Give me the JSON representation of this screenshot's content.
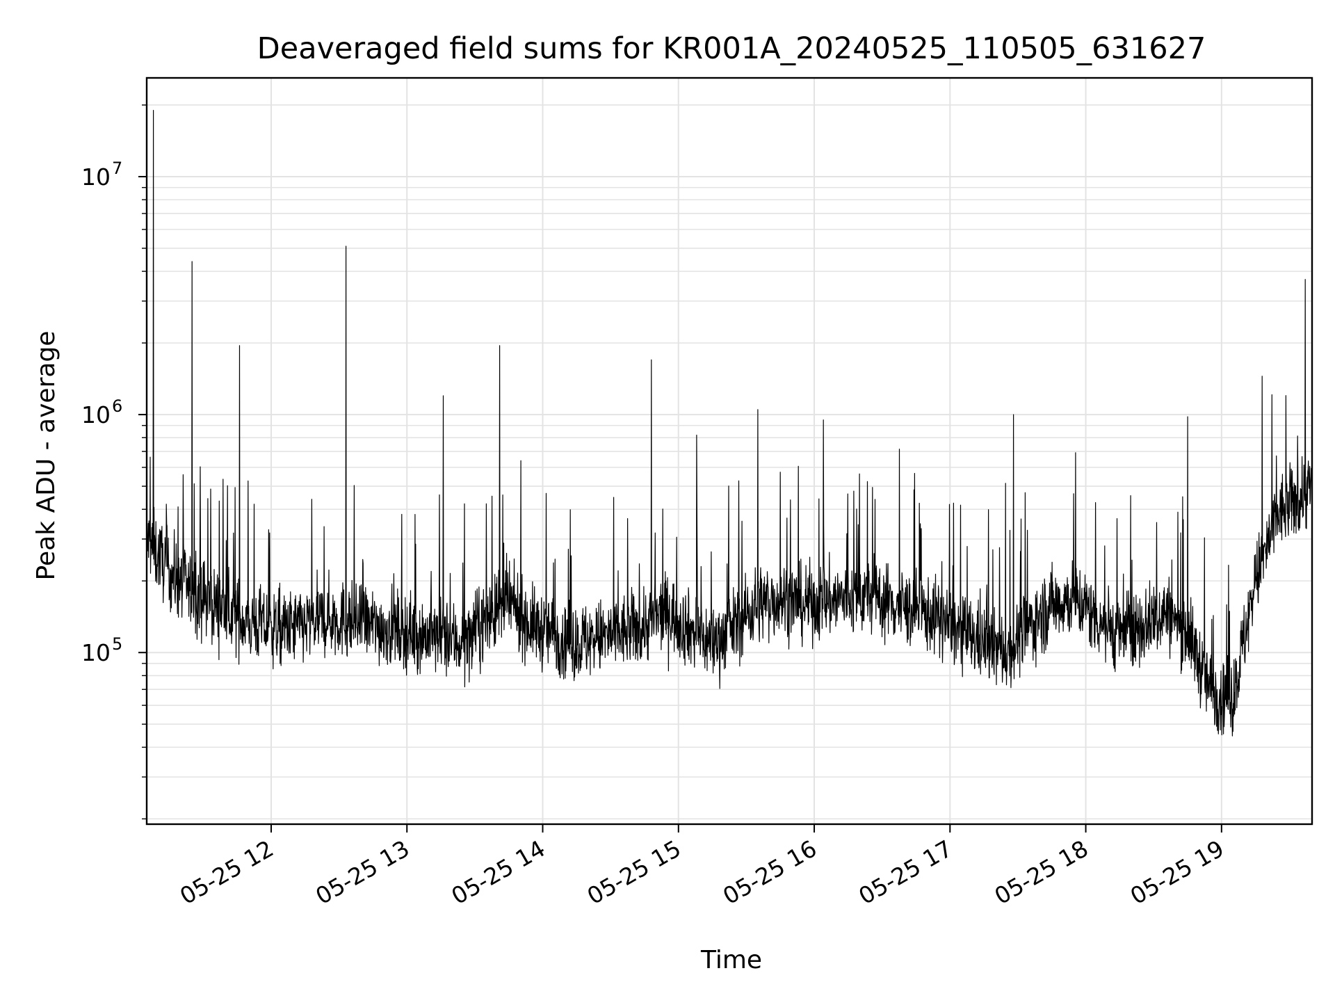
{
  "chart_data": {
    "type": "line",
    "title": "Deaveraged field sums for KR001A_20240525_110505_631627",
    "xlabel": "Time",
    "ylabel": "Peak ADU - average",
    "yscale": "log",
    "ylim": [
      19000,
      26000000
    ],
    "xlim": [
      "05-25 11:05",
      "05-25 19:40"
    ],
    "x_ticks": [
      "05-25 12",
      "05-25 13",
      "05-25 14",
      "05-25 15",
      "05-25 16",
      "05-25 17",
      "05-25 18",
      "05-25 19"
    ],
    "y_ticks": [
      {
        "base": "10",
        "exp": "5",
        "value": 100000
      },
      {
        "base": "10",
        "exp": "6",
        "value": 1000000
      },
      {
        "base": "10",
        "exp": "7",
        "value": 10000000
      }
    ],
    "grid": true,
    "line_color": "#000000",
    "series": [
      {
        "x": [
          "05-25 11:05",
          "05-25 11:15",
          "05-25 11:25",
          "05-25 11:35",
          "05-25 11:45",
          "05-25 11:55",
          "05-25 12:05",
          "05-25 12:15",
          "05-25 12:25",
          "05-25 12:35",
          "05-25 12:45",
          "05-25 12:55",
          "05-25 13:05",
          "05-25 13:15",
          "05-25 13:25",
          "05-25 13:35",
          "05-25 13:45",
          "05-25 13:55",
          "05-25 14:05",
          "05-25 14:15",
          "05-25 14:25",
          "05-25 14:35",
          "05-25 14:45",
          "05-25 14:55",
          "05-25 15:05",
          "05-25 15:15",
          "05-25 15:25",
          "05-25 15:35",
          "05-25 15:45",
          "05-25 15:55",
          "05-25 16:05",
          "05-25 16:15",
          "05-25 16:25",
          "05-25 16:35",
          "05-25 16:45",
          "05-25 16:55",
          "05-25 17:05",
          "05-25 17:15",
          "05-25 17:25",
          "05-25 17:35",
          "05-25 17:45",
          "05-25 17:55",
          "05-25 18:05",
          "05-25 18:15",
          "05-25 18:25",
          "05-25 18:35",
          "05-25 18:45",
          "05-25 18:55",
          "05-25 19:05",
          "05-25 19:15",
          "05-25 19:25",
          "05-25 19:35",
          "05-25 19:40"
        ],
        "y": [
          300000,
          220000,
          180000,
          160000,
          140000,
          130000,
          125000,
          130000,
          140000,
          135000,
          130000,
          125000,
          120000,
          115000,
          110000,
          140000,
          160000,
          130000,
          120000,
          110000,
          115000,
          120000,
          130000,
          150000,
          125000,
          110000,
          130000,
          160000,
          170000,
          160000,
          165000,
          170000,
          175000,
          160000,
          150000,
          140000,
          120000,
          110000,
          100000,
          130000,
          160000,
          170000,
          140000,
          120000,
          130000,
          150000,
          120000,
          70000,
          65000,
          200000,
          380000,
          450000,
          500000
        ]
      }
    ],
    "spikes": [
      {
        "x": "05-25 11:08",
        "y": 19000000
      },
      {
        "x": "05-25 11:25",
        "y": 4400000
      },
      {
        "x": "05-25 11:46",
        "y": 1950000
      },
      {
        "x": "05-25 12:33",
        "y": 5100000
      },
      {
        "x": "05-25 13:16",
        "y": 1200000
      },
      {
        "x": "05-25 13:41",
        "y": 1950000
      },
      {
        "x": "05-25 14:48",
        "y": 1700000
      },
      {
        "x": "05-25 15:08",
        "y": 820000
      },
      {
        "x": "05-25 15:35",
        "y": 1050000
      },
      {
        "x": "05-25 16:04",
        "y": 950000
      },
      {
        "x": "05-25 17:28",
        "y": 1000000
      },
      {
        "x": "05-25 18:45",
        "y": 980000
      },
      {
        "x": "05-25 19:18",
        "y": 1450000
      },
      {
        "x": "05-25 19:37",
        "y": 3700000
      }
    ]
  }
}
